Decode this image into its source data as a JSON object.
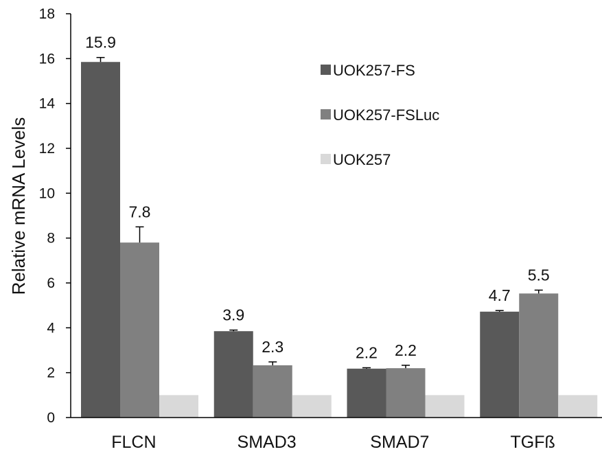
{
  "chart_data": {
    "type": "bar",
    "title": "",
    "xlabel": "",
    "ylabel": "Relative mRNA Levels",
    "ylim": [
      0,
      18
    ],
    "yticks": [
      0,
      2,
      4,
      6,
      8,
      10,
      12,
      14,
      16,
      18
    ],
    "grid": false,
    "legend_position": "top-right",
    "categories": [
      "FLCN",
      "SMAD3",
      "SMAD7",
      "TGFß"
    ],
    "series": [
      {
        "name": "UOK257-FS",
        "color": "#595959",
        "values": [
          15.85,
          3.85,
          2.18,
          4.72
        ],
        "errors": [
          0.2,
          0.05,
          0.04,
          0.05
        ],
        "labels": [
          "15.9",
          "3.9",
          "2.2",
          "4.7"
        ]
      },
      {
        "name": "UOK257-FSLuc",
        "color": "#808080",
        "values": [
          7.8,
          2.33,
          2.2,
          5.53
        ],
        "errors": [
          0.7,
          0.15,
          0.13,
          0.15
        ],
        "labels": [
          "7.8",
          "2.3",
          "2.2",
          "5.5"
        ]
      },
      {
        "name": "UOK257",
        "color": "#d9d9d9",
        "values": [
          1,
          1,
          1,
          1
        ],
        "errors": [
          0,
          0,
          0,
          0
        ],
        "labels": [
          "",
          "",
          "",
          ""
        ]
      }
    ]
  }
}
